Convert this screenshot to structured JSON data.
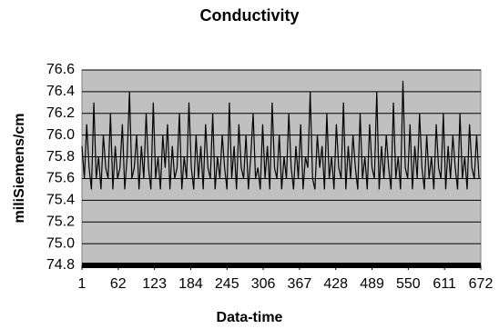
{
  "chart_data": {
    "type": "line",
    "title": "Conductivity",
    "x_label": "Data-time",
    "y_label": "miliSiemens/cm",
    "x": [
      1,
      5,
      9,
      13,
      17,
      21,
      25,
      29,
      33,
      37,
      41,
      45,
      49,
      53,
      57,
      61,
      65,
      69,
      73,
      77,
      81,
      85,
      89,
      93,
      97,
      101,
      105,
      109,
      113,
      117,
      121,
      125,
      129,
      133,
      137,
      141,
      145,
      149,
      153,
      157,
      161,
      165,
      169,
      173,
      177,
      181,
      185,
      189,
      193,
      197,
      201,
      205,
      209,
      213,
      217,
      221,
      225,
      229,
      233,
      237,
      241,
      245,
      249,
      253,
      257,
      261,
      265,
      269,
      273,
      277,
      281,
      285,
      289,
      293,
      297,
      301,
      305,
      309,
      313,
      317,
      321,
      325,
      329,
      333,
      337,
      341,
      345,
      349,
      353,
      357,
      361,
      365,
      369,
      373,
      377,
      381,
      385,
      389,
      393,
      397,
      401,
      405,
      409,
      413,
      417,
      421,
      425,
      429,
      433,
      437,
      441,
      445,
      449,
      453,
      457,
      461,
      465,
      469,
      473,
      477,
      481,
      485,
      489,
      493,
      497,
      501,
      505,
      509,
      513,
      517,
      521,
      525,
      529,
      533,
      537,
      541,
      545,
      549,
      553,
      557,
      561,
      565,
      569,
      573,
      577,
      581,
      585,
      589,
      593,
      597,
      601,
      605,
      609,
      613,
      617,
      621,
      625,
      629,
      633,
      637,
      641,
      645,
      649,
      653,
      657,
      661,
      665,
      669
    ],
    "values": [
      75.9,
      75.6,
      76.1,
      75.7,
      75.5,
      76.3,
      75.6,
      75.8,
      75.5,
      76.0,
      75.7,
      75.6,
      76.2,
      75.5,
      75.9,
      75.6,
      75.7,
      76.1,
      75.5,
      75.8,
      76.4,
      75.6,
      75.7,
      76.0,
      75.5,
      75.9,
      75.6,
      76.2,
      75.7,
      75.5,
      76.3,
      75.6,
      75.8,
      75.5,
      76.0,
      75.7,
      76.1,
      75.5,
      75.9,
      75.6,
      75.7,
      76.2,
      75.5,
      75.8,
      75.6,
      76.3,
      75.7,
      75.5,
      76.0,
      75.6,
      75.9,
      75.5,
      76.1,
      75.7,
      75.6,
      76.2,
      75.5,
      75.8,
      75.6,
      76.0,
      75.7,
      75.5,
      76.3,
      75.6,
      75.9,
      75.5,
      76.1,
      75.7,
      75.6,
      76.0,
      75.5,
      75.8,
      76.2,
      75.6,
      75.7,
      75.5,
      76.1,
      75.6,
      75.9,
      75.5,
      76.3,
      75.7,
      75.6,
      76.0,
      75.5,
      75.8,
      75.6,
      76.2,
      75.7,
      75.5,
      75.9,
      75.6,
      76.1,
      75.5,
      75.8,
      75.7,
      76.4,
      75.6,
      75.5,
      76.0,
      75.7,
      75.9,
      75.5,
      76.2,
      75.6,
      75.8,
      75.5,
      76.1,
      75.7,
      75.6,
      76.3,
      75.5,
      75.9,
      75.6,
      76.0,
      75.7,
      75.5,
      76.2,
      75.6,
      75.8,
      75.5,
      76.1,
      75.7,
      75.6,
      76.4,
      75.5,
      75.9,
      75.6,
      76.0,
      75.7,
      75.5,
      76.3,
      75.6,
      75.8,
      75.5,
      76.5,
      75.7,
      75.6,
      76.1,
      75.5,
      75.9,
      75.6,
      76.2,
      75.7,
      75.5,
      76.0,
      75.6,
      75.8,
      75.5,
      76.1,
      75.7,
      75.6,
      76.2,
      75.5,
      75.9,
      75.6,
      76.0,
      75.7,
      75.5,
      76.2,
      75.6,
      75.8,
      75.5,
      76.1,
      75.7,
      75.6,
      76.0,
      75.6
    ],
    "color": "#000000",
    "background": "#c0c0c0",
    "xlim": [
      1,
      672
    ],
    "xticks": [
      1,
      62,
      123,
      184,
      245,
      306,
      367,
      428,
      489,
      550,
      611,
      672
    ],
    "ylim": [
      74.8,
      76.6
    ],
    "yticks": [
      74.8,
      {
        "value": 75,
        "label": "75.0"
      },
      75.2,
      75.4,
      75.6,
      75.8,
      {
        "value": 76,
        "label": "76.0"
      },
      76.2,
      76.4,
      76.6
    ],
    "grid": true
  }
}
